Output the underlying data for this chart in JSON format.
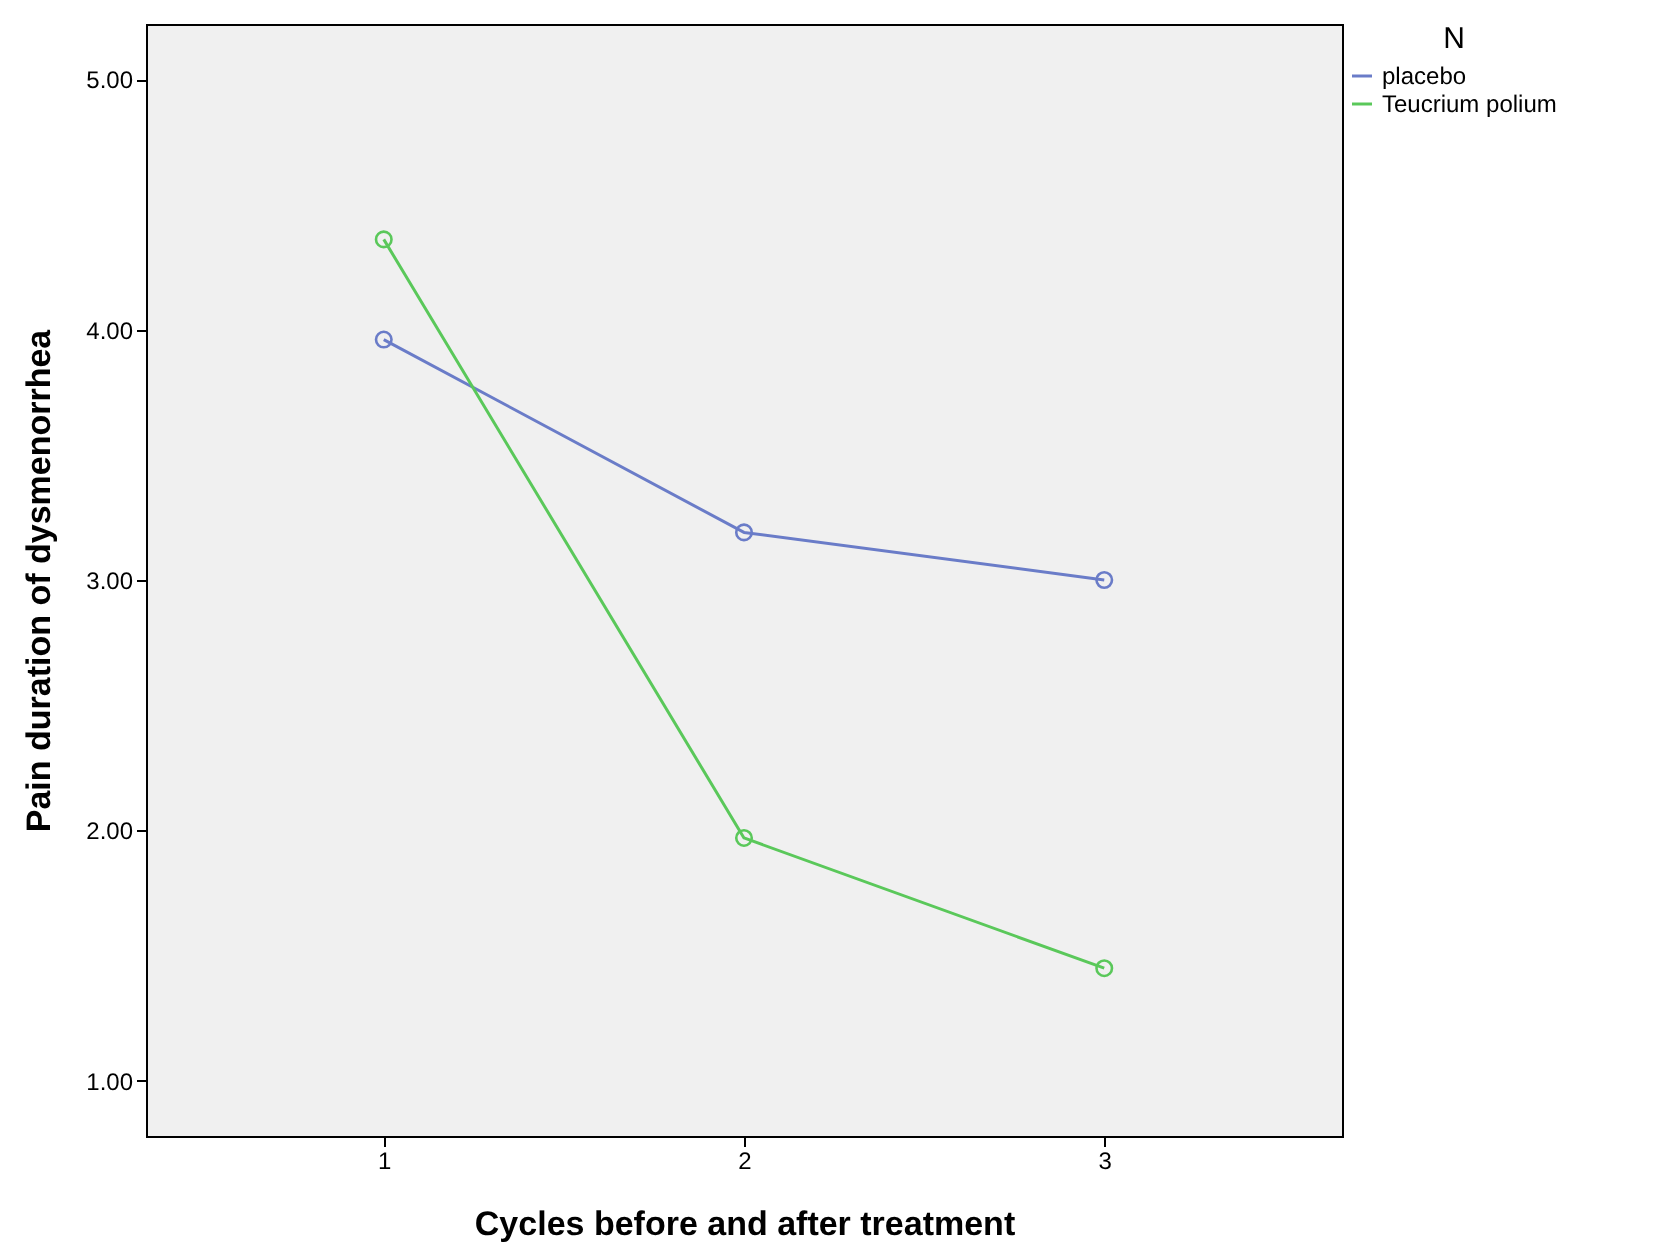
{
  "chart_data": {
    "type": "line",
    "xlabel": "Cycles before and after treatment",
    "ylabel": "Pain duration of dysmenorrhea",
    "legend_title": "N",
    "categories": [
      "1",
      "2",
      "3"
    ],
    "series": [
      {
        "name": "placebo",
        "color": "#6a7cc8",
        "values": [
          3.96,
          3.19,
          3.0
        ]
      },
      {
        "name": "Teucrium polium",
        "color": "#5ac85a",
        "values": [
          4.36,
          1.97,
          1.45
        ]
      }
    ],
    "ylim": [
      0.78,
      5.22
    ],
    "yticks": [
      {
        "value": 1,
        "label": "1.00"
      },
      {
        "value": 2,
        "label": "2.00"
      },
      {
        "value": 3,
        "label": "3.00"
      },
      {
        "value": 4,
        "label": "4.00"
      },
      {
        "value": 5,
        "label": "5.00"
      }
    ],
    "grid": false,
    "legend": "top right",
    "marker": "circle",
    "line_style": "solid"
  }
}
